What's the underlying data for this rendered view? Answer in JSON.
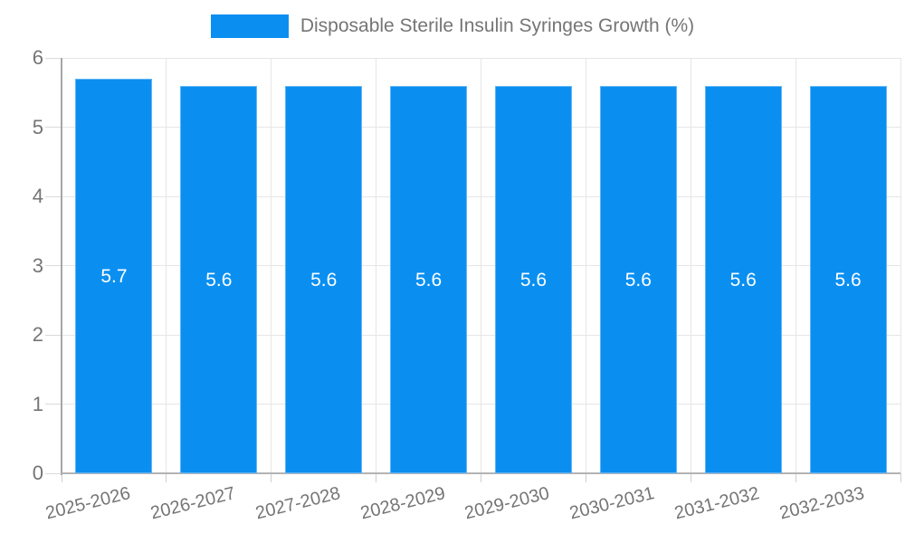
{
  "legend": {
    "label": "Disposable Sterile Insulin Syringes Growth (%)"
  },
  "chart_data": {
    "type": "bar",
    "title": "Disposable Sterile Insulin Syringes Growth (%)",
    "categories": [
      "2025-2026",
      "2026-2027",
      "2027-2028",
      "2028-2029",
      "2029-2030",
      "2030-2031",
      "2031-2032",
      "2032-2033"
    ],
    "values": [
      5.7,
      5.6,
      5.6,
      5.6,
      5.6,
      5.6,
      5.6,
      5.6
    ],
    "value_labels": [
      "5.7",
      "5.6",
      "5.6",
      "5.6",
      "5.6",
      "5.6",
      "5.6",
      "5.6"
    ],
    "ytick_labels": [
      "0",
      "1",
      "2",
      "3",
      "4",
      "5",
      "6"
    ],
    "yticks": [
      0,
      1,
      2,
      3,
      4,
      5,
      6
    ],
    "ylim": [
      0,
      6
    ],
    "xlabel": "",
    "ylabel": "",
    "grid": true,
    "legend_position": "top"
  },
  "colors": {
    "bar": "#0a8ff1",
    "gridline": "#e6e6e6",
    "axis_text": "#757575",
    "value_label": "#ffffff"
  }
}
